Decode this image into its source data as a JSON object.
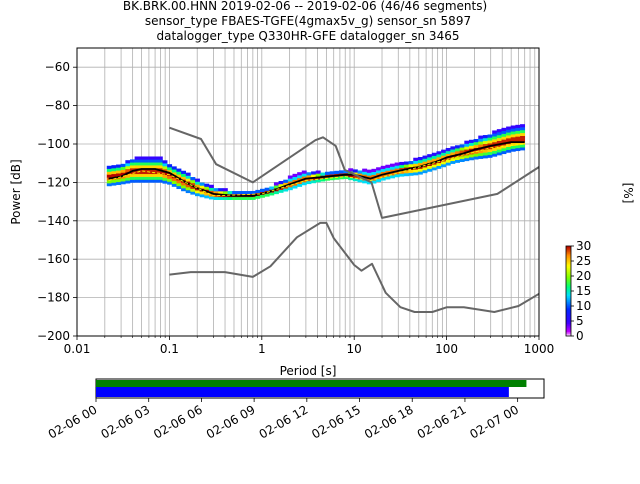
{
  "header": {
    "line1": "BK.BRK.00.HNN   2019-02-06 -- 2019-02-06  (46/46 segments)",
    "line2": "sensor_type FBAES-TGFE(4gmax5v_g) sensor_sn 5897",
    "line3": "datalogger_type Q330HR-GFE datalogger_sn 3465"
  },
  "chart_data": [
    {
      "type": "heatmap",
      "title": "",
      "xlabel": "Period [s]",
      "ylabel": "Power [dB]",
      "xscale": "log",
      "xlim": [
        0.01,
        1000
      ],
      "ylim": [
        -200,
        -50
      ],
      "x_ticks": [
        {
          "value": 0.01,
          "label": "0.01"
        },
        {
          "value": 0.1,
          "label": "0.1"
        },
        {
          "value": 1,
          "label": "1"
        },
        {
          "value": 10,
          "label": "10"
        },
        {
          "value": 100,
          "label": "100"
        },
        {
          "value": 1000,
          "label": "1000"
        }
      ],
      "y_ticks": [
        {
          "value": -200,
          "label": "−200"
        },
        {
          "value": -180,
          "label": "−180"
        },
        {
          "value": -160,
          "label": "−160"
        },
        {
          "value": -140,
          "label": "−140"
        },
        {
          "value": -120,
          "label": "−120"
        },
        {
          "value": -100,
          "label": "−100"
        },
        {
          "value": -80,
          "label": "−80"
        },
        {
          "value": -60,
          "label": "−60"
        }
      ],
      "grid": true,
      "colorbar": {
        "label": "[%]",
        "range": [
          0,
          30
        ],
        "ticks": [
          {
            "value": 0,
            "label": "0"
          },
          {
            "value": 5,
            "label": "5"
          },
          {
            "value": 10,
            "label": "10"
          },
          {
            "value": 15,
            "label": "15"
          },
          {
            "value": 20,
            "label": "20"
          },
          {
            "value": 25,
            "label": "25"
          },
          {
            "value": 30,
            "label": "30"
          }
        ]
      },
      "series": [
        {
          "role": "mean_psd",
          "color": "#000000",
          "points": [
            [
              0.022,
              -118
            ],
            [
              0.03,
              -117
            ],
            [
              0.04,
              -114
            ],
            [
              0.05,
              -113
            ],
            [
              0.07,
              -113
            ],
            [
              0.1,
              -115
            ],
            [
              0.15,
              -120
            ],
            [
              0.2,
              -123
            ],
            [
              0.3,
              -126
            ],
            [
              0.5,
              -127
            ],
            [
              0.8,
              -127
            ],
            [
              1.2,
              -125
            ],
            [
              2,
              -121
            ],
            [
              3,
              -118
            ],
            [
              5,
              -117
            ],
            [
              8,
              -116
            ],
            [
              10,
              -116
            ],
            [
              15,
              -118
            ],
            [
              20,
              -116
            ],
            [
              30,
              -114
            ],
            [
              50,
              -112
            ],
            [
              80,
              -109
            ],
            [
              100,
              -107
            ],
            [
              150,
              -105
            ],
            [
              200,
              -103
            ],
            [
              300,
              -101
            ],
            [
              500,
              -99
            ],
            [
              700,
              -99
            ]
          ]
        },
        {
          "role": "mode_psd",
          "color": "#000000",
          "style": "dashed",
          "points": [
            [
              0.022,
              -119
            ],
            [
              0.05,
              -114
            ],
            [
              0.1,
              -116
            ],
            [
              0.3,
              -127
            ],
            [
              1,
              -126
            ],
            [
              3,
              -119
            ],
            [
              8,
              -117
            ],
            [
              15,
              -119
            ],
            [
              30,
              -115
            ],
            [
              100,
              -108
            ],
            [
              300,
              -102
            ],
            [
              700,
              -100
            ]
          ]
        },
        {
          "role": "NHNM",
          "color": "#666666",
          "points": [
            [
              0.1,
              -91.5
            ],
            [
              0.22,
              -97.4
            ],
            [
              0.32,
              -110.5
            ],
            [
              0.8,
              -120
            ],
            [
              3.8,
              -98
            ],
            [
              4.6,
              -96.5
            ],
            [
              6.3,
              -101
            ],
            [
              7.9,
              -113.5
            ],
            [
              15.4,
              -120
            ],
            [
              20,
              -138.5
            ],
            [
              354.8,
              -126
            ],
            [
              1000,
              -112
            ]
          ]
        },
        {
          "role": "NLNM",
          "color": "#666666",
          "points": [
            [
              0.1,
              -168
            ],
            [
              0.17,
              -166.7
            ],
            [
              0.4,
              -166.7
            ],
            [
              0.8,
              -169.2
            ],
            [
              1.24,
              -163.7
            ],
            [
              2.4,
              -148.6
            ],
            [
              4.3,
              -141.1
            ],
            [
              5,
              -141.1
            ],
            [
              6,
              -149
            ],
            [
              10,
              -163
            ],
            [
              12,
              -166
            ],
            [
              15.6,
              -162.4
            ],
            [
              21.9,
              -177.5
            ],
            [
              31.6,
              -185
            ],
            [
              45,
              -187.5
            ],
            [
              70,
              -187.5
            ],
            [
              101,
              -185
            ],
            [
              154,
              -185
            ],
            [
              328,
              -187.5
            ],
            [
              600,
              -184.4
            ],
            [
              1000,
              -178
            ]
          ]
        }
      ],
      "histogram_band": [
        {
          "period": 0.021,
          "center": -117,
          "spread": 5
        },
        {
          "period": 0.03,
          "center": -116,
          "spread": 5
        },
        {
          "period": 0.04,
          "center": -114,
          "spread": 6
        },
        {
          "period": 0.06,
          "center": -114,
          "spread": 6
        },
        {
          "period": 0.08,
          "center": -114,
          "spread": 6
        },
        {
          "period": 0.1,
          "center": -116,
          "spread": 5
        },
        {
          "period": 0.15,
          "center": -120,
          "spread": 5
        },
        {
          "period": 0.2,
          "center": -123,
          "spread": 4
        },
        {
          "period": 0.3,
          "center": -126,
          "spread": 3
        },
        {
          "period": 0.5,
          "center": -127,
          "spread": 2
        },
        {
          "period": 0.8,
          "center": -127,
          "spread": 2
        },
        {
          "period": 1.2,
          "center": -125,
          "spread": 2
        },
        {
          "period": 2,
          "center": -121,
          "spread": 3
        },
        {
          "period": 3,
          "center": -118,
          "spread": 3
        },
        {
          "period": 5,
          "center": -117,
          "spread": 2
        },
        {
          "period": 8,
          "center": -116,
          "spread": 2
        },
        {
          "period": 12,
          "center": -117,
          "spread": 3
        },
        {
          "period": 15,
          "center": -118,
          "spread": 3
        },
        {
          "period": 20,
          "center": -116,
          "spread": 3
        },
        {
          "period": 30,
          "center": -114,
          "spread": 3
        },
        {
          "period": 50,
          "center": -112,
          "spread": 4
        },
        {
          "period": 80,
          "center": -109,
          "spread": 4
        },
        {
          "period": 120,
          "center": -106,
          "spread": 4
        },
        {
          "period": 200,
          "center": -103,
          "spread": 5
        },
        {
          "period": 300,
          "center": -101,
          "spread": 6
        },
        {
          "period": 500,
          "center": -98,
          "spread": 6
        },
        {
          "period": 700,
          "center": -97,
          "spread": 6
        }
      ]
    },
    {
      "type": "bar",
      "title": "",
      "xlabel": "",
      "ylabel": "",
      "xlim": [
        "2019-02-06 00:00",
        "2019-02-07 01:30"
      ],
      "x_ticks": [
        "02-06 00",
        "02-06 03",
        "02-06 06",
        "02-06 09",
        "02-06 12",
        "02-06 15",
        "02-06 18",
        "02-06 21",
        "02-07 00"
      ],
      "bars": [
        {
          "role": "data_available",
          "start": "2019-02-06 00:00",
          "end": "2019-02-07 00:30",
          "color": "#008000"
        },
        {
          "role": "psd_used",
          "start": "2019-02-06 00:00",
          "end": "2019-02-06 23:30",
          "color": "#0000ff"
        }
      ]
    }
  ]
}
